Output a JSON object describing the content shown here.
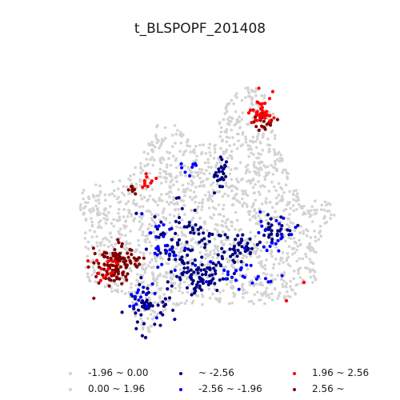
{
  "title": "t_BLSPOPF_201408",
  "legend": [
    {
      "label": "-1.96 ~ 0.00",
      "color": "#d3d3d3"
    },
    {
      "label": "0.00 ~ 1.96",
      "color": "#d3d3d3"
    },
    {
      "label": "~ -2.56",
      "color": "#000080"
    },
    {
      "label": "-2.56 ~ -1.96",
      "color": "#0000ff"
    },
    {
      "label": "1.96 ~ 2.56",
      "color": "#ff0000"
    },
    {
      "label": "2.56 ~",
      "color": "#800000"
    }
  ],
  "colors": {
    "neutral": "#d3d3d3",
    "cold_strong": "#000080",
    "cold": "#0000ff",
    "hot": "#ff0000",
    "hot_strong": "#800000"
  }
}
